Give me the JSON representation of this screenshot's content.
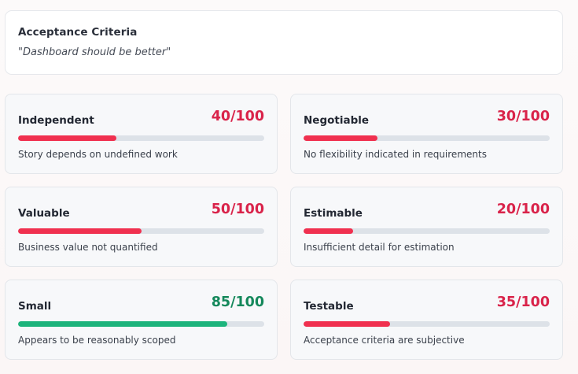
{
  "acceptance": {
    "title": "Acceptance Criteria",
    "quote": "\"Dashboard should be better\""
  },
  "colors": {
    "bad": "#f0304f",
    "bad_text": "#d9234a",
    "good": "#1db47c",
    "good_text": "#14885b"
  },
  "metrics": [
    {
      "label": "Independent",
      "score": "40/100",
      "value": 40,
      "status": "bad",
      "description": "Story depends on undefined work"
    },
    {
      "label": "Negotiable",
      "score": "30/100",
      "value": 30,
      "status": "bad",
      "description": "No flexibility indicated in requirements"
    },
    {
      "label": "Valuable",
      "score": "50/100",
      "value": 50,
      "status": "bad",
      "description": "Business value not quantified"
    },
    {
      "label": "Estimable",
      "score": "20/100",
      "value": 20,
      "status": "bad",
      "description": "Insufficient detail for estimation"
    },
    {
      "label": "Small",
      "score": "85/100",
      "value": 85,
      "status": "good",
      "description": "Appears to be reasonably scoped"
    },
    {
      "label": "Testable",
      "score": "35/100",
      "value": 35,
      "status": "bad",
      "description": "Acceptance criteria are subjective"
    }
  ]
}
